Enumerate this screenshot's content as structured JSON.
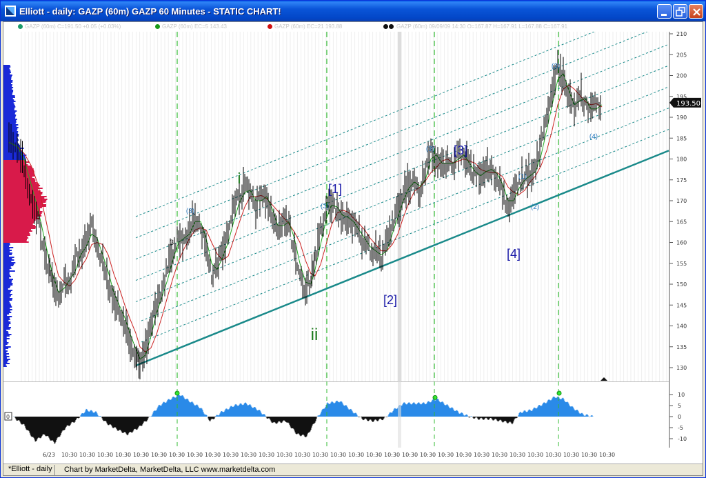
{
  "window": {
    "title": "Elliott - daily: GAZP (60m) GAZP 60 Minutes - STATIC CHART!"
  },
  "legend": {
    "items": [
      {
        "text": "GAZP (60m) C=191.50 +0.05 (+0.03%)",
        "color": "#c8c8c8"
      },
      {
        "text": "GAZP (60m) EC=5 143.43",
        "color": "#c8c8c8"
      },
      {
        "text": "GAZP (60m) EC=21 193.88",
        "color": "#c8c8c8"
      },
      {
        "text": "GAZP (60m) 09/09/09 14:30 O=167.87 H=167.91 L=167.88 C=167.91",
        "color": "#c8c8c8"
      }
    ],
    "dot_colors": [
      "#1a9a6a",
      "#1a9a1a",
      "#d01010",
      "#111111",
      "#111111"
    ]
  },
  "price_axis": {
    "ticks": [
      "210",
      "205",
      "200",
      "195",
      "190",
      "185",
      "180",
      "175",
      "170",
      "165",
      "160",
      "155",
      "150",
      "145",
      "140",
      "135",
      "130"
    ],
    "last_price": "193.50"
  },
  "wave_labels": {
    "i": "i",
    "ii": "ii",
    "w1": "[1]",
    "w2": "[2]",
    "w3": "[3]",
    "w4": "[4]",
    "small_3": "3",
    "sub_3a": "(3)",
    "sub_3b": "(3)",
    "sub_3c": "(3)",
    "sub_3d": "(3)",
    "sub_1": "(1)",
    "sub_2": "(2)",
    "sub_4": "(4)"
  },
  "osc_axis": {
    "ticks": [
      "10",
      "5",
      "0",
      "-5",
      "-10"
    ],
    "zero_label": "0"
  },
  "time_axis": {
    "labels": [
      "6/23",
      "10:30",
      "10:30",
      "10:30",
      "10:30",
      "10:30",
      "10:30",
      "10:30",
      "10:30",
      "10:30",
      "10:30",
      "10:30",
      "10:30",
      "10:30",
      "10:30",
      "10:30",
      "10:30",
      "10:30",
      "10:30",
      "10:30",
      "10:30",
      "10:30",
      "10:30",
      "10:30",
      "10:30",
      "10:30",
      "10:30",
      "10:30",
      "10:30",
      "10:30",
      "10:30",
      "10:30"
    ]
  },
  "status": {
    "tab": "*Elliott - daily",
    "credit": "Chart by MarketDelta, MarketDelta, LLC www.marketdelta.com"
  },
  "colors": {
    "wave_green": "#1a7a1a",
    "wave_blue": "#1a1aa8",
    "sub_blue": "#2a7ac0",
    "channel": "#1a8a8a",
    "vline": "#33bb33",
    "osc_pos": "#2a8ae8",
    "osc_neg": "#111111",
    "profile_blue": "#1a2ad8",
    "profile_red": "#d81a4a"
  }
}
